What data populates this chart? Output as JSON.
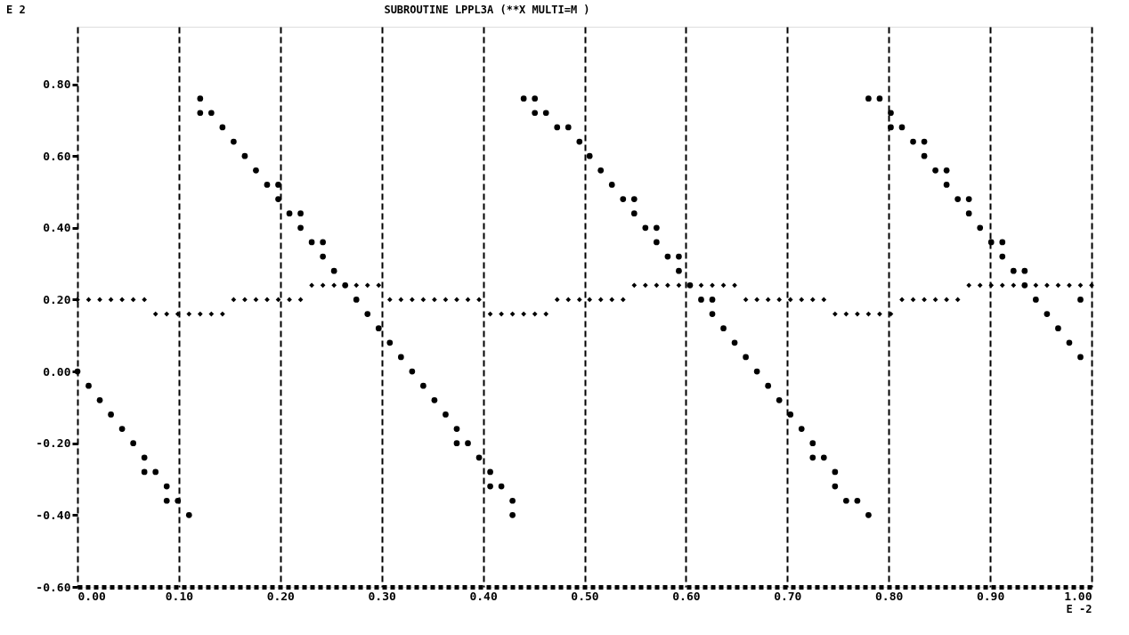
{
  "chart_data": {
    "type": "scatter",
    "title": "SUBROUTINE LPPL3A (**X MULTI=M )",
    "xlabel": "E -2",
    "ylabel": "E  2",
    "xlim": [
      0,
      1
    ],
    "ylim": [
      -0.6,
      0.96
    ],
    "xticks": [
      {
        "value": 0,
        "label": "0.00"
      },
      {
        "value": 0.1,
        "label": "0.10"
      },
      {
        "value": 0.2,
        "label": "0.20"
      },
      {
        "value": 0.3,
        "label": "0.30"
      },
      {
        "value": 0.4,
        "label": "0.40"
      },
      {
        "value": 0.5,
        "label": "0.50"
      },
      {
        "value": 0.6,
        "label": "0.60"
      },
      {
        "value": 0.7,
        "label": "0.70"
      },
      {
        "value": 0.8,
        "label": "0.80"
      },
      {
        "value": 0.9,
        "label": "0.90"
      },
      {
        "value": 1,
        "label": "1.00"
      }
    ],
    "yticks": [
      {
        "value": -0.6,
        "label": "-0.60"
      },
      {
        "value": -0.4,
        "label": "-0.40"
      },
      {
        "value": -0.2,
        "label": "-0.20"
      },
      {
        "value": 0,
        "label": "0.00"
      },
      {
        "value": 0.2,
        "label": "0.20"
      },
      {
        "value": 0.4,
        "label": "0.40"
      },
      {
        "value": 0.6,
        "label": "0.60"
      },
      {
        "value": 0.8,
        "label": "0.80"
      }
    ],
    "grid": "x",
    "series": [
      {
        "color": "#000000",
        "marker": "circle",
        "x": [
          0,
          0.011,
          0.022,
          0.033,
          0.044,
          0.055,
          0.066,
          0.066,
          0.077,
          0.088,
          0.088,
          0.099,
          0.11,
          0.121,
          0.121,
          0.132,
          0.143,
          0.154,
          0.165,
          0.176,
          0.187,
          0.198,
          0.198,
          0.209,
          0.22,
          0.22,
          0.231,
          0.242,
          0.242,
          0.253,
          0.264,
          0.275,
          0.286,
          0.297,
          0.308,
          0.319,
          0.33,
          0.341,
          0.352,
          0.363,
          0.374,
          0.374,
          0.385,
          0.396,
          0.407,
          0.407,
          0.418,
          0.429,
          0.429,
          0.44,
          0.451,
          0.451,
          0.462,
          0.473,
          0.484,
          0.495,
          0.505,
          0.516,
          0.527,
          0.538,
          0.549,
          0.549,
          0.56,
          0.571,
          0.571,
          0.582,
          0.593,
          0.593,
          0.604,
          0.615,
          0.626,
          0.626,
          0.637,
          0.648,
          0.659,
          0.67,
          0.681,
          0.692,
          0.703,
          0.714,
          0.725,
          0.725,
          0.736,
          0.747,
          0.747,
          0.758,
          0.769,
          0.78,
          0.78,
          0.791,
          0.802,
          0.802,
          0.813,
          0.824,
          0.835,
          0.835,
          0.846,
          0.857,
          0.857,
          0.868,
          0.879,
          0.879,
          0.89,
          0.901,
          0.912,
          0.912,
          0.923,
          0.934,
          0.934,
          0.945,
          0.956,
          0.967,
          0.978,
          0.989,
          0.989
        ],
        "values": [
          0,
          -0.04,
          -0.08,
          -0.12,
          -0.16,
          -0.2,
          -0.24,
          -0.28,
          -0.28,
          -0.32,
          -0.36,
          -0.36,
          -0.4,
          0.76,
          0.72,
          0.72,
          0.68,
          0.64,
          0.6,
          0.56,
          0.52,
          0.52,
          0.48,
          0.44,
          0.44,
          0.4,
          0.36,
          0.36,
          0.32,
          0.28,
          0.24,
          0.2,
          0.16,
          0.12,
          0.08,
          0.04,
          0,
          -0.04,
          -0.08,
          -0.12,
          -0.16,
          -0.2,
          -0.2,
          -0.24,
          -0.28,
          -0.32,
          -0.32,
          -0.36,
          -0.4,
          0.76,
          0.76,
          0.72,
          0.72,
          0.68,
          0.68,
          0.64,
          0.6,
          0.56,
          0.52,
          0.48,
          0.48,
          0.44,
          0.4,
          0.4,
          0.36,
          0.32,
          0.32,
          0.28,
          0.24,
          0.2,
          0.2,
          0.16,
          0.12,
          0.08,
          0.04,
          0,
          -0.04,
          -0.08,
          -0.12,
          -0.16,
          -0.2,
          -0.24,
          -0.24,
          -0.28,
          -0.32,
          -0.36,
          -0.36,
          -0.4,
          0.76,
          0.76,
          0.72,
          0.68,
          0.68,
          0.64,
          0.64,
          0.6,
          0.56,
          0.56,
          0.52,
          0.48,
          0.48,
          0.44,
          0.4,
          0.36,
          0.36,
          0.32,
          0.28,
          0.28,
          0.24,
          0.2,
          0.16,
          0.12,
          0.08,
          0.04,
          0.2
        ]
      },
      {
        "color": "#000000",
        "marker": "diamond",
        "x": [
          0,
          0.011,
          0.022,
          0.033,
          0.044,
          0.055,
          0.066,
          0.077,
          0.088,
          0.099,
          0.11,
          0.121,
          0.132,
          0.143,
          0.154,
          0.165,
          0.176,
          0.187,
          0.198,
          0.209,
          0.22,
          0.231,
          0.242,
          0.253,
          0.275,
          0.286,
          0.297,
          0.308,
          0.319,
          0.33,
          0.341,
          0.352,
          0.363,
          0.374,
          0.385,
          0.396,
          0.407,
          0.418,
          0.429,
          0.44,
          0.451,
          0.462,
          0.473,
          0.484,
          0.495,
          0.505,
          0.516,
          0.527,
          0.538,
          0.549,
          0.56,
          0.571,
          0.582,
          0.593,
          0.615,
          0.626,
          0.637,
          0.648,
          0.659,
          0.67,
          0.681,
          0.692,
          0.703,
          0.714,
          0.725,
          0.736,
          0.747,
          0.758,
          0.769,
          0.78,
          0.791,
          0.802,
          0.813,
          0.824,
          0.835,
          0.846,
          0.857,
          0.868,
          0.879,
          0.89,
          0.901,
          0.912,
          0.923,
          0.945,
          0.956,
          0.967,
          0.978,
          0.989,
          1.0
        ],
        "values": [
          0.2,
          0.2,
          0.2,
          0.2,
          0.2,
          0.2,
          0.2,
          0.16,
          0.16,
          0.16,
          0.16,
          0.16,
          0.16,
          0.16,
          0.2,
          0.2,
          0.2,
          0.2,
          0.2,
          0.2,
          0.2,
          0.24,
          0.24,
          0.24,
          0.24,
          0.24,
          0.24,
          0.2,
          0.2,
          0.2,
          0.2,
          0.2,
          0.2,
          0.2,
          0.2,
          0.2,
          0.16,
          0.16,
          0.16,
          0.16,
          0.16,
          0.16,
          0.2,
          0.2,
          0.2,
          0.2,
          0.2,
          0.2,
          0.2,
          0.24,
          0.24,
          0.24,
          0.24,
          0.24,
          0.24,
          0.24,
          0.24,
          0.24,
          0.2,
          0.2,
          0.2,
          0.2,
          0.2,
          0.2,
          0.2,
          0.2,
          0.16,
          0.16,
          0.16,
          0.16,
          0.16,
          0.16,
          0.2,
          0.2,
          0.2,
          0.2,
          0.2,
          0.2,
          0.24,
          0.24,
          0.24,
          0.24,
          0.24,
          0.24,
          0.24,
          0.24,
          0.24,
          0.24,
          0.24
        ]
      }
    ]
  }
}
